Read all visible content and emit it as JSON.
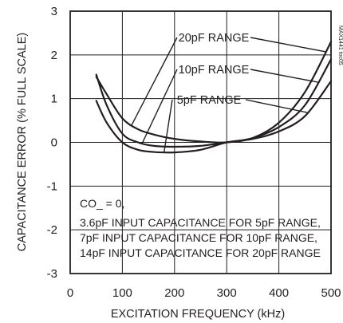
{
  "chart_data": {
    "type": "line",
    "xlabel": "EXCITATION FREQUENCY (kHz)",
    "ylabel": "CAPACITANCE ERROR (% FULL SCALE)",
    "xlim": [
      0,
      500
    ],
    "ylim": [
      -3,
      3
    ],
    "x_ticks": [
      "0",
      "100",
      "200",
      "300",
      "400",
      "500"
    ],
    "y_ticks": [
      "3",
      "2",
      "1",
      "0",
      "-1",
      "-2",
      "-3"
    ],
    "grid": true,
    "watermark": "MAX1441 toc05",
    "series": [
      {
        "name": "20pF RANGE",
        "x": [
          50,
          70,
          100,
          130,
          160,
          200,
          250,
          300,
          350,
          400,
          450,
          500
        ],
        "y": [
          1.5,
          1.1,
          0.55,
          0.3,
          0.18,
          0.08,
          0.02,
          0.0,
          0.1,
          0.45,
          1.15,
          2.3
        ]
      },
      {
        "name": "10pF RANGE",
        "x": [
          50,
          70,
          100,
          130,
          160,
          200,
          250,
          300,
          350,
          400,
          450,
          500
        ],
        "y": [
          1.55,
          0.85,
          0.2,
          0.0,
          -0.08,
          -0.1,
          -0.08,
          0.0,
          0.1,
          0.35,
          0.85,
          1.9
        ]
      },
      {
        "name": "5pF RANGE",
        "x": [
          50,
          70,
          100,
          130,
          160,
          200,
          250,
          300,
          350,
          400,
          450,
          500
        ],
        "y": [
          0.95,
          0.45,
          0.0,
          -0.17,
          -0.22,
          -0.23,
          -0.17,
          0.0,
          0.08,
          0.25,
          0.6,
          1.4
        ]
      }
    ],
    "annotations": [
      "CO_ = 0,",
      "3.6pF INPUT CAPACITANCE FOR 5pF RANGE,",
      "7pF INPUT CAPACITANCE FOR 10pF RANGE,",
      "14pF INPUT CAPACITANCE FOR 20pF RANGE"
    ],
    "series_label_pointers": [
      {
        "series": "20pF RANGE",
        "left_to_x": 118,
        "right_to_x": 490
      },
      {
        "series": "10pF RANGE",
        "left_to_x": 138,
        "right_to_x": 475
      },
      {
        "series": "5pF RANGE",
        "left_to_x": 180,
        "right_to_x": 455
      }
    ]
  }
}
